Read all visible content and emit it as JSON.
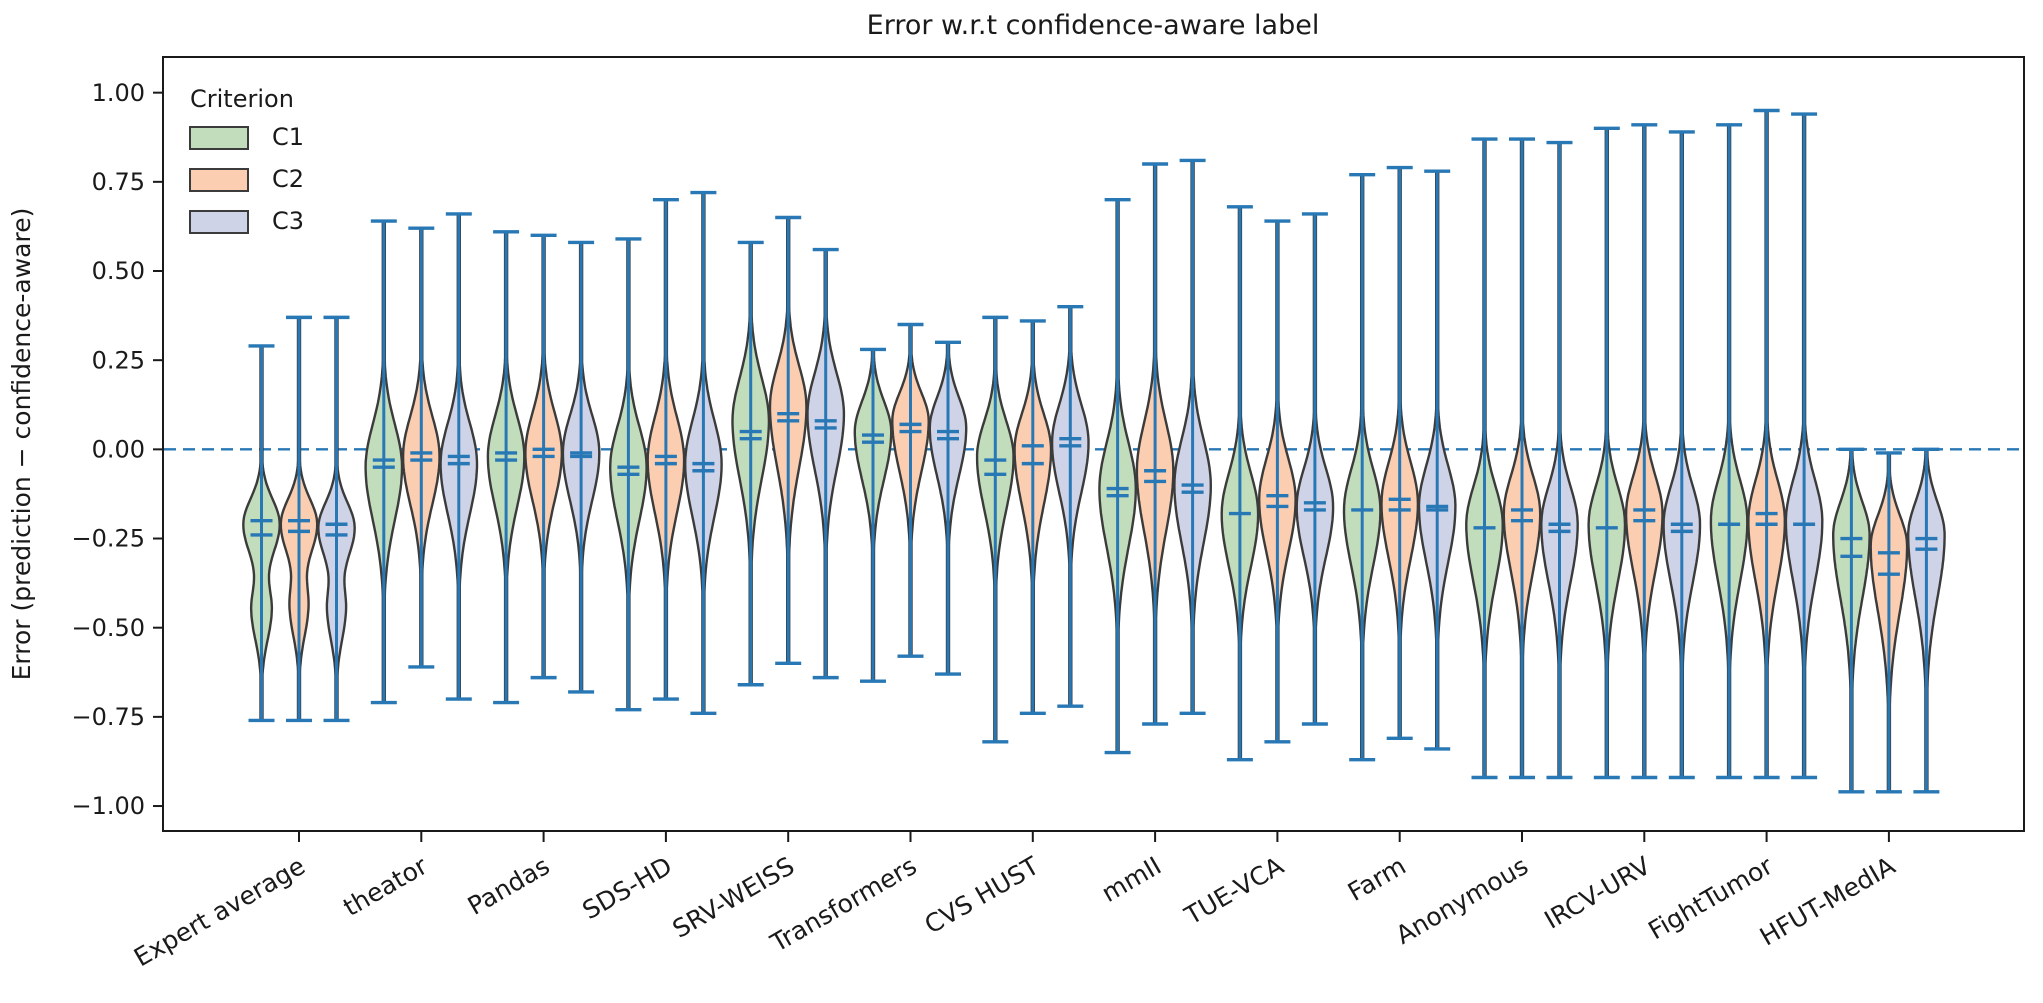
{
  "chart_data": {
    "type": "violin",
    "title": "Error w.r.t confidence-aware label",
    "ylabel": "Error (prediction − confidence-aware)",
    "grid": false,
    "ylim": [
      -1.07,
      1.1
    ],
    "zero_line": 0.0,
    "yticks": [
      {
        "v": 1.0,
        "label": "1.00"
      },
      {
        "v": 0.75,
        "label": "0.75"
      },
      {
        "v": 0.5,
        "label": "0.50"
      },
      {
        "v": 0.25,
        "label": "0.25"
      },
      {
        "v": 0.0,
        "label": "0.00"
      },
      {
        "v": -0.25,
        "label": "−0.25"
      },
      {
        "v": -0.5,
        "label": "−0.50"
      },
      {
        "v": -0.75,
        "label": "−0.75"
      },
      {
        "v": -1.0,
        "label": "−1.00"
      }
    ],
    "legend": {
      "title": "Criterion",
      "position": "upper-left",
      "entries": [
        {
          "label": "C1",
          "color": "#c2ddbc"
        },
        {
          "label": "C2",
          "color": "#fbceb1"
        },
        {
          "label": "C3",
          "color": "#cfd3e8"
        }
      ]
    },
    "colors": {
      "C1": "#c2ddbc",
      "C2": "#fbceb1",
      "C3": "#cfd3e8"
    },
    "accent_blue": "#2878b5",
    "outline_color": "#3b3b3b",
    "categories": [
      "Expert average",
      "theator",
      "Pandas",
      "SDS-HD",
      "SRV-WEISS",
      "Transformers",
      "CVS HUST",
      "mmII",
      "TUE-VCA",
      "Farm",
      "Anonymous",
      "IRCV-URV",
      "FightTumor",
      "HFUT-MedIA"
    ],
    "groups": [
      {
        "name": "Expert average",
        "violins": [
          {
            "criterion": "C1",
            "min": -0.76,
            "max": 0.29,
            "marks": [
              -0.2,
              -0.24
            ],
            "lobes": [
              {
                "c": -0.21,
                "su": 0.1,
                "sd": 0.12,
                "a": 1
              },
              {
                "c": -0.45,
                "su": 0.09,
                "sd": 0.12,
                "a": 0.55
              }
            ]
          },
          {
            "criterion": "C2",
            "min": -0.76,
            "max": 0.37,
            "marks": [
              -0.2,
              -0.23
            ],
            "lobes": [
              {
                "c": -0.21,
                "su": 0.1,
                "sd": 0.12,
                "a": 1
              },
              {
                "c": -0.44,
                "su": 0.09,
                "sd": 0.12,
                "a": 0.5
              }
            ]
          },
          {
            "criterion": "C3",
            "min": -0.76,
            "max": 0.37,
            "marks": [
              -0.21,
              -0.24
            ],
            "lobes": [
              {
                "c": -0.22,
                "su": 0.1,
                "sd": 0.12,
                "a": 1
              },
              {
                "c": -0.45,
                "su": 0.09,
                "sd": 0.12,
                "a": 0.5
              }
            ]
          }
        ]
      },
      {
        "name": "theator",
        "violins": [
          {
            "criterion": "C1",
            "min": -0.71,
            "max": 0.64,
            "marks": [
              -0.03,
              -0.05
            ],
            "lobes": [
              {
                "c": -0.05,
                "su": 0.17,
                "sd": 0.21,
                "a": 1
              }
            ]
          },
          {
            "criterion": "C2",
            "min": -0.61,
            "max": 0.62,
            "marks": [
              -0.01,
              -0.03
            ],
            "lobes": [
              {
                "c": -0.02,
                "su": 0.16,
                "sd": 0.19,
                "a": 1
              }
            ]
          },
          {
            "criterion": "C3",
            "min": -0.7,
            "max": 0.66,
            "marks": [
              -0.02,
              -0.04
            ],
            "lobes": [
              {
                "c": -0.04,
                "su": 0.16,
                "sd": 0.2,
                "a": 1
              }
            ]
          }
        ]
      },
      {
        "name": "Pandas",
        "violins": [
          {
            "criterion": "C1",
            "min": -0.71,
            "max": 0.61,
            "marks": [
              -0.01,
              -0.03
            ],
            "lobes": [
              {
                "c": -0.02,
                "su": 0.16,
                "sd": 0.2,
                "a": 1
              }
            ]
          },
          {
            "criterion": "C2",
            "min": -0.64,
            "max": 0.6,
            "marks": [
              0.0,
              -0.02
            ],
            "lobes": [
              {
                "c": -0.01,
                "su": 0.16,
                "sd": 0.19,
                "a": 1
              }
            ]
          },
          {
            "criterion": "C3",
            "min": -0.68,
            "max": 0.58,
            "marks": [
              -0.01,
              -0.02
            ],
            "lobes": [
              {
                "c": -0.01,
                "su": 0.15,
                "sd": 0.19,
                "a": 1
              }
            ]
          }
        ]
      },
      {
        "name": "SDS-HD",
        "violins": [
          {
            "criterion": "C1",
            "min": -0.73,
            "max": 0.59,
            "marks": [
              -0.05,
              -0.07
            ],
            "lobes": [
              {
                "c": -0.05,
                "su": 0.16,
                "sd": 0.21,
                "a": 1
              }
            ]
          },
          {
            "criterion": "C2",
            "min": -0.7,
            "max": 0.7,
            "marks": [
              -0.02,
              -0.04
            ],
            "lobes": [
              {
                "c": -0.03,
                "su": 0.17,
                "sd": 0.21,
                "a": 1
              }
            ]
          },
          {
            "criterion": "C3",
            "min": -0.74,
            "max": 0.72,
            "marks": [
              -0.04,
              -0.06
            ],
            "lobes": [
              {
                "c": -0.04,
                "su": 0.17,
                "sd": 0.21,
                "a": 1
              }
            ]
          }
        ]
      },
      {
        "name": "SRV-WEISS",
        "violins": [
          {
            "criterion": "C1",
            "min": -0.66,
            "max": 0.58,
            "marks": [
              0.05,
              0.03
            ],
            "lobes": [
              {
                "c": 0.08,
                "su": 0.17,
                "sd": 0.23,
                "a": 1
              }
            ]
          },
          {
            "criterion": "C2",
            "min": -0.6,
            "max": 0.65,
            "marks": [
              0.1,
              0.08
            ],
            "lobes": [
              {
                "c": 0.12,
                "su": 0.16,
                "sd": 0.24,
                "a": 1
              }
            ]
          },
          {
            "criterion": "C3",
            "min": -0.64,
            "max": 0.56,
            "marks": [
              0.08,
              0.06
            ],
            "lobes": [
              {
                "c": 0.1,
                "su": 0.16,
                "sd": 0.22,
                "a": 1
              }
            ]
          }
        ]
      },
      {
        "name": "Transformers",
        "violins": [
          {
            "criterion": "C1",
            "min": -0.65,
            "max": 0.28,
            "marks": [
              0.04,
              0.02
            ],
            "lobes": [
              {
                "c": 0.05,
                "su": 0.12,
                "sd": 0.19,
                "a": 1
              }
            ]
          },
          {
            "criterion": "C2",
            "min": -0.58,
            "max": 0.35,
            "marks": [
              0.07,
              0.05
            ],
            "lobes": [
              {
                "c": 0.08,
                "su": 0.11,
                "sd": 0.2,
                "a": 1
              }
            ]
          },
          {
            "criterion": "C3",
            "min": -0.63,
            "max": 0.3,
            "marks": [
              0.05,
              0.03
            ],
            "lobes": [
              {
                "c": 0.06,
                "su": 0.12,
                "sd": 0.19,
                "a": 1
              }
            ]
          }
        ]
      },
      {
        "name": "CVS HUST",
        "violins": [
          {
            "criterion": "C1",
            "min": -0.82,
            "max": 0.37,
            "marks": [
              -0.03,
              -0.07
            ],
            "lobes": [
              {
                "c": -0.02,
                "su": 0.14,
                "sd": 0.21,
                "a": 1
              }
            ]
          },
          {
            "criterion": "C2",
            "min": -0.74,
            "max": 0.36,
            "marks": [
              0.01,
              -0.04
            ],
            "lobes": [
              {
                "c": 0.0,
                "su": 0.14,
                "sd": 0.22,
                "a": 1
              }
            ]
          },
          {
            "criterion": "C3",
            "min": -0.72,
            "max": 0.4,
            "marks": [
              0.03,
              0.01
            ],
            "lobes": [
              {
                "c": 0.02,
                "su": 0.15,
                "sd": 0.2,
                "a": 1
              }
            ]
          }
        ]
      },
      {
        "name": "mmII",
        "violins": [
          {
            "criterion": "C1",
            "min": -0.85,
            "max": 0.7,
            "marks": [
              -0.11,
              -0.13
            ],
            "lobes": [
              {
                "c": -0.11,
                "su": 0.18,
                "sd": 0.23,
                "a": 1
              }
            ]
          },
          {
            "criterion": "C2",
            "min": -0.77,
            "max": 0.8,
            "marks": [
              -0.06,
              -0.09
            ],
            "lobes": [
              {
                "c": -0.06,
                "su": 0.19,
                "sd": 0.24,
                "a": 1
              }
            ]
          },
          {
            "criterion": "C3",
            "min": -0.74,
            "max": 0.81,
            "marks": [
              -0.1,
              -0.12
            ],
            "lobes": [
              {
                "c": -0.1,
                "su": 0.18,
                "sd": 0.23,
                "a": 1
              }
            ]
          }
        ]
      },
      {
        "name": "TUE-VCA",
        "violins": [
          {
            "criterion": "C1",
            "min": -0.87,
            "max": 0.68,
            "marks": [
              -0.18
            ],
            "lobes": [
              {
                "c": -0.18,
                "su": 0.16,
                "sd": 0.21,
                "a": 1
              }
            ]
          },
          {
            "criterion": "C2",
            "min": -0.82,
            "max": 0.64,
            "marks": [
              -0.13,
              -0.16
            ],
            "lobes": [
              {
                "c": -0.14,
                "su": 0.16,
                "sd": 0.21,
                "a": 1
              }
            ]
          },
          {
            "criterion": "C3",
            "min": -0.77,
            "max": 0.66,
            "marks": [
              -0.15,
              -0.17
            ],
            "lobes": [
              {
                "c": -0.16,
                "su": 0.15,
                "sd": 0.2,
                "a": 1
              }
            ]
          }
        ]
      },
      {
        "name": "Farm",
        "violins": [
          {
            "criterion": "C1",
            "min": -0.87,
            "max": 0.77,
            "marks": [
              -0.17
            ],
            "lobes": [
              {
                "c": -0.17,
                "su": 0.16,
                "sd": 0.22,
                "a": 1
              }
            ]
          },
          {
            "criterion": "C2",
            "min": -0.81,
            "max": 0.79,
            "marks": [
              -0.14,
              -0.17
            ],
            "lobes": [
              {
                "c": -0.15,
                "su": 0.16,
                "sd": 0.22,
                "a": 1
              }
            ]
          },
          {
            "criterion": "C3",
            "min": -0.84,
            "max": 0.78,
            "marks": [
              -0.16,
              -0.17
            ],
            "lobes": [
              {
                "c": -0.16,
                "su": 0.16,
                "sd": 0.22,
                "a": 1
              }
            ]
          }
        ]
      },
      {
        "name": "Anonymous",
        "violins": [
          {
            "criterion": "C1",
            "min": -0.92,
            "max": 0.87,
            "marks": [
              -0.22
            ],
            "lobes": [
              {
                "c": -0.21,
                "su": 0.15,
                "sd": 0.23,
                "a": 1
              }
            ]
          },
          {
            "criterion": "C2",
            "min": -0.92,
            "max": 0.87,
            "marks": [
              -0.17,
              -0.2
            ],
            "lobes": [
              {
                "c": -0.18,
                "su": 0.15,
                "sd": 0.23,
                "a": 1
              }
            ]
          },
          {
            "criterion": "C3",
            "min": -0.92,
            "max": 0.86,
            "marks": [
              -0.21,
              -0.23
            ],
            "lobes": [
              {
                "c": -0.21,
                "su": 0.15,
                "sd": 0.23,
                "a": 1
              }
            ]
          }
        ]
      },
      {
        "name": "IRCV-URV",
        "violins": [
          {
            "criterion": "C1",
            "min": -0.92,
            "max": 0.9,
            "marks": [
              -0.22
            ],
            "lobes": [
              {
                "c": -0.21,
                "su": 0.15,
                "sd": 0.23,
                "a": 1
              }
            ]
          },
          {
            "criterion": "C2",
            "min": -0.92,
            "max": 0.91,
            "marks": [
              -0.17,
              -0.2
            ],
            "lobes": [
              {
                "c": -0.18,
                "su": 0.15,
                "sd": 0.23,
                "a": 1
              }
            ]
          },
          {
            "criterion": "C3",
            "min": -0.92,
            "max": 0.89,
            "marks": [
              -0.21,
              -0.23
            ],
            "lobes": [
              {
                "c": -0.21,
                "su": 0.15,
                "sd": 0.23,
                "a": 1
              }
            ]
          }
        ]
      },
      {
        "name": "FightTumor",
        "violins": [
          {
            "criterion": "C1",
            "min": -0.92,
            "max": 0.91,
            "marks": [
              -0.21
            ],
            "lobes": [
              {
                "c": -0.2,
                "su": 0.16,
                "sd": 0.24,
                "a": 1
              }
            ]
          },
          {
            "criterion": "C2",
            "min": -0.92,
            "max": 0.95,
            "marks": [
              -0.18,
              -0.21
            ],
            "lobes": [
              {
                "c": -0.2,
                "su": 0.16,
                "sd": 0.24,
                "a": 1
              }
            ]
          },
          {
            "criterion": "C3",
            "min": -0.92,
            "max": 0.94,
            "marks": [
              -0.21
            ],
            "lobes": [
              {
                "c": -0.2,
                "su": 0.16,
                "sd": 0.24,
                "a": 1
              }
            ]
          }
        ]
      },
      {
        "name": "HFUT-MedIA",
        "violins": [
          {
            "criterion": "C1",
            "min": -0.96,
            "max": 0.0,
            "marks": [
              -0.25,
              -0.3
            ],
            "lobes": [
              {
                "c": -0.24,
                "su": 0.13,
                "sd": 0.25,
                "a": 1
              }
            ]
          },
          {
            "criterion": "C2",
            "min": -0.96,
            "max": -0.01,
            "marks": [
              -0.29,
              -0.35
            ],
            "lobes": [
              {
                "c": -0.27,
                "su": 0.12,
                "sd": 0.26,
                "a": 1
              }
            ]
          },
          {
            "criterion": "C3",
            "min": -0.96,
            "max": 0.0,
            "marks": [
              -0.25,
              -0.28
            ],
            "lobes": [
              {
                "c": -0.24,
                "su": 0.13,
                "sd": 0.25,
                "a": 1
              }
            ]
          }
        ]
      }
    ]
  }
}
